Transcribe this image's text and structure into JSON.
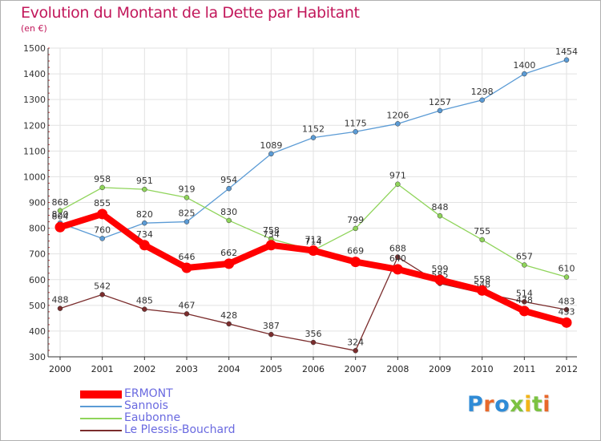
{
  "header": {
    "title": "Evolution du Montant de la Dette par Habitant",
    "subtitle": "(en €)"
  },
  "colors": {
    "title": "#c2185b",
    "legend_text": "#6a6ae0",
    "axis": "#222222"
  },
  "brand": {
    "letters": [
      {
        "char": "P",
        "color": "#2f8bd6"
      },
      {
        "char": "r",
        "color": "#e8682a"
      },
      {
        "char": "o",
        "color": "#2f8bd6"
      },
      {
        "char": "x",
        "color": "#7cc242"
      },
      {
        "char": "i",
        "color": "#f2b418"
      },
      {
        "char": "t",
        "color": "#7cc242"
      },
      {
        "char": "i",
        "color": "#e8682a"
      }
    ]
  },
  "chart_data": {
    "type": "line",
    "title": "Evolution du Montant de la Dette par Habitant",
    "subtitle": "(en €)",
    "xlabel": "",
    "ylabel": "",
    "x": [
      "2000",
      "2001",
      "2002",
      "2003",
      "2004",
      "2005",
      "2006",
      "2007",
      "2008",
      "2009",
      "2010",
      "2011",
      "2012"
    ],
    "ylim": [
      300,
      1500
    ],
    "yticks": [
      300,
      400,
      500,
      600,
      700,
      800,
      900,
      1000,
      1100,
      1200,
      1300,
      1400,
      1500
    ],
    "grid": true,
    "legend_position": "bottom-left",
    "series": [
      {
        "name": "Sannois",
        "color": "#5b9bd5",
        "values": [
          820,
          760,
          820,
          825,
          954,
          1089,
          1152,
          1175,
          1206,
          1257,
          1298,
          1400,
          1454
        ],
        "labels": [
          "820",
          "760",
          "820",
          "825",
          "954",
          "1089",
          "1152",
          "1175",
          "1206",
          "1257",
          "1298",
          "1400",
          "1454"
        ]
      },
      {
        "name": "Eaubonne",
        "color": "#8fd45a",
        "values": [
          868,
          958,
          951,
          919,
          830,
          758,
          714,
          799,
          971,
          848,
          755,
          657,
          610
        ],
        "labels": [
          "868",
          "958",
          "951",
          "919",
          "830",
          "758",
          "714",
          "799",
          "971",
          "848",
          "755",
          "657",
          "610"
        ]
      },
      {
        "name": "Le Plessis-Bouchard",
        "color": "#7b2d2d",
        "values": [
          488,
          542,
          485,
          467,
          428,
          387,
          356,
          324,
          688,
          585,
          548,
          514,
          483
        ],
        "labels": [
          "488",
          "542",
          "485",
          "467",
          "428",
          "387",
          "356",
          "324",
          "688",
          "585",
          "548",
          "514",
          "483"
        ]
      },
      {
        "name": "ERMONT",
        "color": "#ff0000",
        "values": [
          804,
          855,
          734,
          646,
          662,
          734,
          713,
          669,
          640,
          599,
          558,
          478,
          433
        ],
        "labels": [
          "804",
          "855",
          "734",
          "646",
          "662",
          "734",
          "713",
          "669",
          "640",
          "599",
          "558",
          "478",
          "433"
        ]
      }
    ]
  }
}
